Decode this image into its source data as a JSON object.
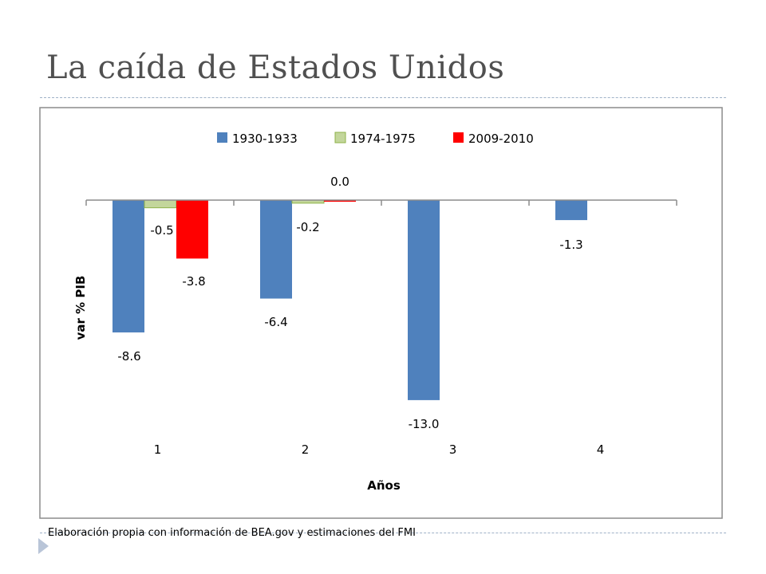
{
  "slide": {
    "title": "La caída de Estados Unidos",
    "footnote": "Elaboración propia con información de BEA.gov y estimaciones del FMI"
  },
  "chart_data": {
    "type": "bar",
    "categories": [
      "1",
      "2",
      "3",
      "4"
    ],
    "xlabel": "Años",
    "ylabel": "var % PIB",
    "ylim": [
      -14,
      0.5
    ],
    "grid": false,
    "legend_position": "top",
    "series": [
      {
        "name": "1930-1933",
        "color": "#4f81bd",
        "values": [
          -8.6,
          -6.4,
          -13.0,
          -1.3
        ]
      },
      {
        "name": "1974-1975",
        "color": "#c3d69b",
        "values": [
          -0.5,
          -0.2,
          null,
          null
        ]
      },
      {
        "name": "2009-2010",
        "color": "#ff0000",
        "values": [
          -3.8,
          0.0,
          null,
          null
        ]
      }
    ],
    "data_labels": [
      {
        "series": 0,
        "category": 0,
        "text": "-8.6"
      },
      {
        "series": 0,
        "category": 1,
        "text": "-6.4"
      },
      {
        "series": 0,
        "category": 2,
        "text": "-13.0"
      },
      {
        "series": 0,
        "category": 3,
        "text": "-1.3"
      },
      {
        "series": 1,
        "category": 0,
        "text": "-0.5"
      },
      {
        "series": 1,
        "category": 1,
        "text": "-0.2"
      },
      {
        "series": 2,
        "category": 0,
        "text": "-3.8"
      },
      {
        "series": 2,
        "category": 1,
        "text": "0.0"
      }
    ]
  }
}
